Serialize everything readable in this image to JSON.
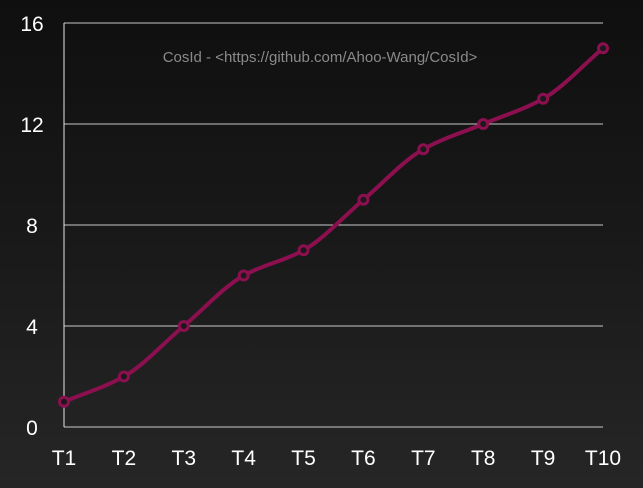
{
  "chart_data": {
    "type": "line",
    "categories": [
      "T1",
      "T2",
      "T3",
      "T4",
      "T5",
      "T6",
      "T7",
      "T8",
      "T9",
      "T10"
    ],
    "series": [
      {
        "values": [
          1,
          2,
          4,
          6,
          7,
          9,
          11,
          12,
          13,
          15
        ]
      }
    ],
    "ylim": [
      0,
      16
    ],
    "yticks": [
      "0",
      "4",
      "8",
      "12",
      "16"
    ],
    "grid": true,
    "watermark": "CosId - <https://github.com/Ahoo-Wang/CosId>",
    "colors": {
      "series": "#8c0f4f",
      "grid": "#e6e6e6",
      "text": "#ffffff",
      "watermark": "#8a8a8a"
    }
  }
}
